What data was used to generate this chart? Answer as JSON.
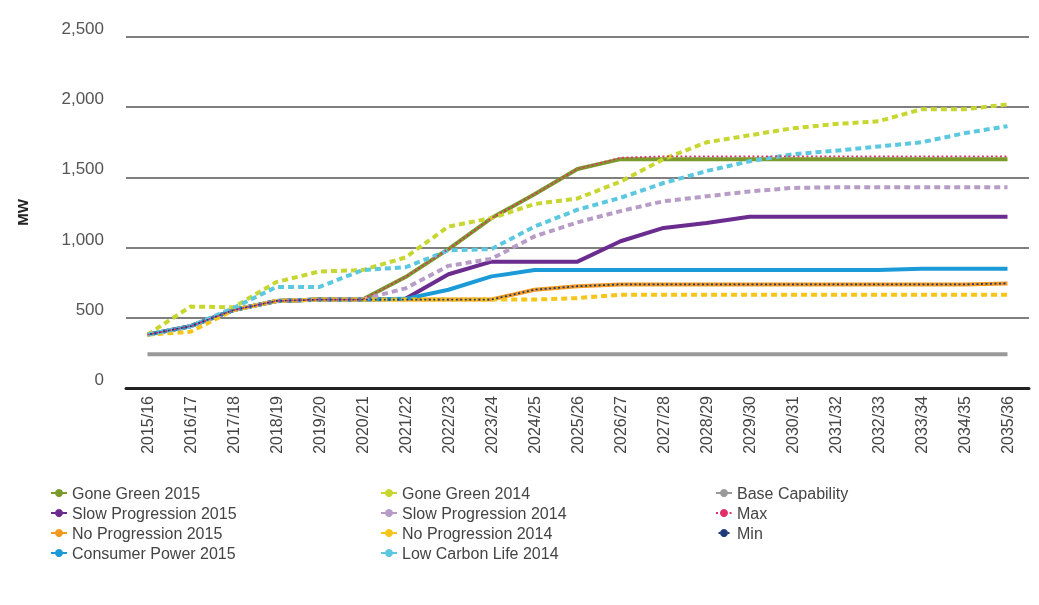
{
  "chart_data": {
    "type": "line",
    "ylabel": "MW",
    "categories": [
      "2015/16",
      "2016/17",
      "2017/18",
      "2018/19",
      "2019/20",
      "2020/21",
      "2021/22",
      "2022/23",
      "2023/24",
      "2024/25",
      "2025/26",
      "2026/27",
      "2027/28",
      "2028/29",
      "2029/30",
      "2030/31",
      "2031/32",
      "2032/33",
      "2033/34",
      "2034/35",
      "2035/36"
    ],
    "ylim": [
      0,
      2500
    ],
    "yticks": [
      0,
      {
        "value": 500,
        "label": "500"
      },
      {
        "value": 1000,
        "label": "1,000"
      },
      {
        "value": 1500,
        "label": "1,500"
      },
      {
        "value": 2000,
        "label": "2,000"
      },
      {
        "value": 2500,
        "label": "2,500"
      }
    ],
    "grid": "y",
    "legend": "bottom",
    "marker": "none",
    "line_style": "solid",
    "series": [
      {
        "name": "Gone Green 2015",
        "color": "#7a9a2a",
        "values": [
          380,
          440,
          555,
          620,
          630,
          630,
          790,
          990,
          1210,
          1380,
          1560,
          1630,
          1630,
          1630,
          1630,
          1630,
          1630,
          1630,
          1630,
          1630,
          1630
        ]
      },
      {
        "name": "Slow Progression 2015",
        "color": "#6a2c8e",
        "values": [
          380,
          440,
          555,
          620,
          630,
          630,
          635,
          810,
          900,
          900,
          900,
          1045,
          1140,
          1175,
          1220,
          1220,
          1220,
          1220,
          1220,
          1220,
          1220
        ]
      },
      {
        "name": "No Progression 2015",
        "color": "#f39a1e",
        "values": [
          380,
          440,
          555,
          620,
          630,
          630,
          630,
          630,
          630,
          700,
          725,
          738,
          738,
          738,
          738,
          738,
          738,
          738,
          738,
          738,
          745
        ]
      },
      {
        "name": "Consumer Power 2015",
        "color": "#1a9ad6",
        "values": [
          380,
          440,
          555,
          620,
          630,
          630,
          635,
          700,
          795,
          840,
          840,
          840,
          840,
          840,
          840,
          840,
          840,
          840,
          850,
          850,
          850
        ]
      },
      {
        "name": "Gone Green 2014",
        "color": "#c8d630",
        "line_style": "dashed",
        "values": [
          380,
          580,
          575,
          755,
          830,
          840,
          930,
          1150,
          1210,
          1310,
          1350,
          1470,
          1630,
          1750,
          1800,
          1850,
          1880,
          1900,
          1985,
          1985,
          2020
        ]
      },
      {
        "name": "Slow Progression 2014",
        "color": "#b89cc8",
        "line_style": "dashed",
        "values": [
          380,
          440,
          555,
          620,
          630,
          630,
          710,
          870,
          920,
          1080,
          1180,
          1260,
          1330,
          1365,
          1400,
          1425,
          1430,
          1430,
          1430,
          1430,
          1430
        ]
      },
      {
        "name": "No Progression 2014",
        "color": "#f5c518",
        "line_style": "dashed",
        "values": [
          380,
          400,
          555,
          620,
          630,
          630,
          630,
          630,
          630,
          630,
          640,
          665,
          665,
          665,
          665,
          665,
          665,
          665,
          665,
          665,
          665
        ]
      },
      {
        "name": "Low Carbon Life 2014",
        "color": "#5bc8e0",
        "line_style": "dashed",
        "values": [
          380,
          440,
          570,
          720,
          720,
          840,
          860,
          980,
          990,
          1150,
          1270,
          1355,
          1460,
          1545,
          1615,
          1665,
          1690,
          1720,
          1750,
          1815,
          1865
        ]
      },
      {
        "name": "Base Capability",
        "color": "#999999",
        "values": [
          240,
          240,
          240,
          240,
          240,
          240,
          240,
          240,
          240,
          240,
          240,
          240,
          240,
          240,
          240,
          240,
          240,
          240,
          240,
          240,
          240
        ]
      },
      {
        "name": "Max",
        "color": "#e0306a",
        "line_style": "dotted",
        "values": [
          380,
          440,
          555,
          620,
          630,
          630,
          790,
          990,
          1210,
          1380,
          1560,
          1640,
          1650,
          1650,
          1650,
          1650,
          1650,
          1650,
          1650,
          1650,
          1650
        ]
      },
      {
        "name": "Min",
        "color": "#1f3a7a",
        "line_style": "dotted",
        "values": [
          380,
          440,
          555,
          620,
          630,
          630,
          630,
          630,
          630,
          700,
          725,
          738,
          738,
          738,
          738,
          738,
          738,
          738,
          738,
          738,
          745
        ]
      }
    ]
  }
}
